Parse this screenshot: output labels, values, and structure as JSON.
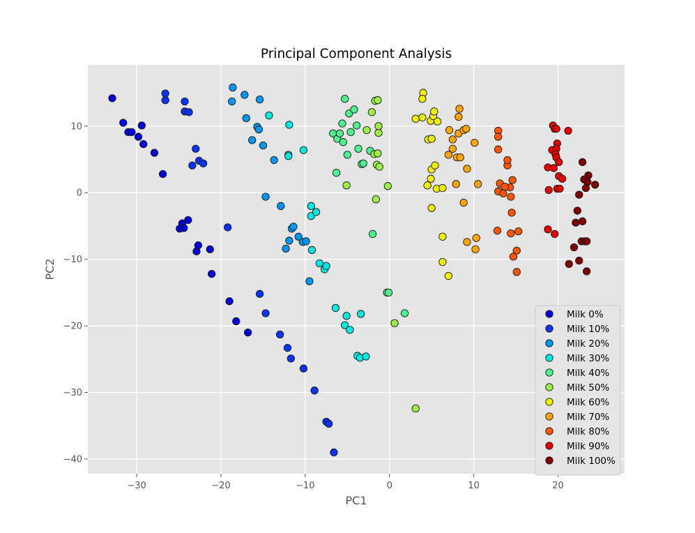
{
  "chart_data": {
    "type": "scatter",
    "title": "Principal Component Analysis",
    "xlabel": "PC1",
    "ylabel": "PC2",
    "xlim": [
      -35.8,
      27.9
    ],
    "ylim": [
      -42.2,
      19.2
    ],
    "xticks": [
      -30,
      -20,
      -10,
      0,
      10,
      20
    ],
    "yticks": [
      -40,
      -30,
      -20,
      -10,
      0,
      10
    ],
    "xtick_labels": [
      "−30",
      "−20",
      "−10",
      "0",
      "10",
      "20"
    ],
    "ytick_labels": [
      "−40",
      "−30",
      "−20",
      "−10",
      "0",
      "10"
    ],
    "grid": true,
    "legend_position": "lower-right",
    "series": [
      {
        "name": "Milk 0%",
        "color": "#0000d8",
        "points": [
          [
            -32.9,
            14.2
          ],
          [
            -31.6,
            10.5
          ],
          [
            -31.0,
            9.1
          ],
          [
            -30.6,
            9.1
          ],
          [
            -29.8,
            8.4
          ],
          [
            -29.4,
            10.1
          ],
          [
            -29.2,
            7.3
          ],
          [
            -27.9,
            6.0
          ],
          [
            -26.9,
            2.8
          ],
          [
            -24.9,
            -5.4
          ],
          [
            -24.6,
            -4.6
          ],
          [
            -24.4,
            -5.3
          ],
          [
            -23.9,
            -4.1
          ],
          [
            -22.9,
            -8.8
          ],
          [
            -22.7,
            -7.9
          ],
          [
            -21.3,
            -8.5
          ],
          [
            -21.1,
            -12.2
          ],
          [
            -19.0,
            -16.3
          ],
          [
            -18.2,
            -19.3
          ],
          [
            -16.8,
            -21.0
          ]
        ]
      },
      {
        "name": "Milk 10%",
        "color": "#0a32f0",
        "points": [
          [
            -26.6,
            14.9
          ],
          [
            -26.6,
            13.9
          ],
          [
            -24.3,
            13.7
          ],
          [
            -24.3,
            12.2
          ],
          [
            -23.8,
            12.1
          ],
          [
            -23.4,
            4.1
          ],
          [
            -23.0,
            6.6
          ],
          [
            -22.6,
            4.8
          ],
          [
            -22.1,
            4.4
          ],
          [
            -19.2,
            -5.2
          ],
          [
            -15.4,
            -15.2
          ],
          [
            -14.7,
            -18.1
          ],
          [
            -13.0,
            -21.3
          ],
          [
            -12.1,
            -23.3
          ],
          [
            -11.7,
            -24.9
          ],
          [
            -10.2,
            -26.4
          ],
          [
            -8.9,
            -29.7
          ],
          [
            -7.5,
            -34.4
          ],
          [
            -7.2,
            -34.7
          ],
          [
            -6.6,
            -39.0
          ]
        ]
      },
      {
        "name": "Milk 20%",
        "color": "#0096f0",
        "points": [
          [
            -18.6,
            15.8
          ],
          [
            -18.7,
            13.7
          ],
          [
            -17.2,
            14.7
          ],
          [
            -17.0,
            11.2
          ],
          [
            -16.3,
            7.9
          ],
          [
            -15.7,
            9.9
          ],
          [
            -15.5,
            9.5
          ],
          [
            -15.4,
            14.0
          ],
          [
            -15.0,
            7.1
          ],
          [
            -14.7,
            -0.6
          ],
          [
            -13.7,
            4.9
          ],
          [
            -12.9,
            -2.0
          ],
          [
            -12.3,
            -8.4
          ],
          [
            -11.9,
            -7.2
          ],
          [
            -11.6,
            -5.4
          ],
          [
            -11.4,
            -5.1
          ],
          [
            -10.8,
            -6.6
          ],
          [
            -10.3,
            -7.4
          ],
          [
            -9.9,
            -7.3
          ],
          [
            -9.5,
            -13.3
          ]
        ]
      },
      {
        "name": "Milk 30%",
        "color": "#00e8e0",
        "points": [
          [
            -14.3,
            11.6
          ],
          [
            -11.9,
            10.2
          ],
          [
            -12.0,
            5.7
          ],
          [
            -12.0,
            5.5
          ],
          [
            -10.2,
            6.4
          ],
          [
            -9.3,
            -2.0
          ],
          [
            -9.3,
            -3.5
          ],
          [
            -8.7,
            -2.9
          ],
          [
            -9.2,
            -8.6
          ],
          [
            -8.3,
            -10.6
          ],
          [
            -7.7,
            -11.5
          ],
          [
            -7.5,
            -11.0
          ],
          [
            -6.4,
            -17.3
          ],
          [
            -5.3,
            -19.9
          ],
          [
            -5.1,
            -18.5
          ],
          [
            -4.7,
            -20.6
          ],
          [
            -3.8,
            -24.5
          ],
          [
            -3.5,
            -24.8
          ],
          [
            -3.4,
            -18.2
          ],
          [
            -2.8,
            -24.6
          ]
        ]
      },
      {
        "name": "Milk 40%",
        "color": "#4ef090",
        "points": [
          [
            -5.3,
            14.1
          ],
          [
            -6.7,
            8.9
          ],
          [
            -6.2,
            8.1
          ],
          [
            -5.9,
            8.9
          ],
          [
            -5.6,
            10.4
          ],
          [
            -5.5,
            7.6
          ],
          [
            -4.8,
            11.9
          ],
          [
            -4.6,
            9.1
          ],
          [
            -4.2,
            12.5
          ],
          [
            -3.9,
            10.1
          ],
          [
            -5.0,
            5.7
          ],
          [
            -6.3,
            3.0
          ],
          [
            -3.7,
            6.6
          ],
          [
            -3.3,
            4.3
          ],
          [
            -3.1,
            4.4
          ],
          [
            -2.3,
            6.3
          ],
          [
            -2.0,
            -6.2
          ],
          [
            -0.3,
            -15.0
          ],
          [
            -0.1,
            -15.0
          ],
          [
            1.8,
            -18.1
          ]
        ]
      },
      {
        "name": "Milk 50%",
        "color": "#9cf046",
        "points": [
          [
            -5.1,
            1.1
          ],
          [
            -2.7,
            9.4
          ],
          [
            -2.1,
            12.1
          ],
          [
            -1.8,
            5.8
          ],
          [
            -1.7,
            13.8
          ],
          [
            -1.4,
            13.9
          ],
          [
            -1.3,
            9.0
          ],
          [
            -1.3,
            10.0
          ],
          [
            -1.5,
            4.2
          ],
          [
            -1.4,
            5.9
          ],
          [
            -1.6,
            -1.0
          ],
          [
            -1.2,
            3.9
          ],
          [
            -0.2,
            1.0
          ],
          [
            0.6,
            -19.6
          ],
          [
            3.1,
            -32.4
          ]
        ]
      },
      {
        "name": "Milk 60%",
        "color": "#f0f000",
        "points": [
          [
            3.1,
            11.1
          ],
          [
            3.9,
            11.3
          ],
          [
            4.0,
            15.0
          ],
          [
            3.9,
            14.1
          ],
          [
            4.6,
            8.0
          ],
          [
            4.5,
            1.1
          ],
          [
            4.9,
            10.8
          ],
          [
            5.0,
            8.1
          ],
          [
            5.0,
            3.5
          ],
          [
            5.2,
            11.5
          ],
          [
            5.3,
            12.2
          ],
          [
            5.4,
            4.1
          ],
          [
            5.7,
            10.7
          ],
          [
            5.6,
            0.6
          ],
          [
            6.3,
            0.7
          ],
          [
            4.9,
            2.1
          ],
          [
            5.0,
            -2.3
          ],
          [
            6.3,
            -6.6
          ],
          [
            6.3,
            -10.4
          ],
          [
            7.0,
            -12.5
          ]
        ]
      },
      {
        "name": "Milk 70%",
        "color": "#ffa500",
        "points": [
          [
            7.1,
            9.4
          ],
          [
            7.0,
            5.7
          ],
          [
            7.5,
            8.0
          ],
          [
            7.5,
            6.6
          ],
          [
            8.0,
            5.3
          ],
          [
            8.2,
            11.4
          ],
          [
            8.3,
            12.6
          ],
          [
            8.2,
            8.9
          ],
          [
            8.4,
            5.3
          ],
          [
            8.8,
            9.4
          ],
          [
            9.1,
            9.6
          ],
          [
            9.2,
            3.6
          ],
          [
            7.9,
            1.3
          ],
          [
            8.8,
            -1.5
          ],
          [
            10.1,
            7.5
          ],
          [
            10.5,
            1.3
          ],
          [
            9.2,
            -7.4
          ],
          [
            10.3,
            -6.8
          ],
          [
            10.2,
            -8.5
          ]
        ]
      },
      {
        "name": "Milk 80%",
        "color": "#ff5500",
        "points": [
          [
            12.9,
            9.3
          ],
          [
            12.9,
            8.4
          ],
          [
            12.9,
            6.5
          ],
          [
            13.1,
            1.4
          ],
          [
            12.9,
            0.2
          ],
          [
            13.5,
            -0.1
          ],
          [
            14.0,
            4.1
          ],
          [
            14.0,
            4.9
          ],
          [
            14.3,
            0.8
          ],
          [
            13.7,
            0.9
          ],
          [
            14.6,
            1.9
          ],
          [
            14.4,
            -0.6
          ],
          [
            14.5,
            -3.0
          ],
          [
            14.4,
            -6.1
          ],
          [
            12.8,
            -5.7
          ],
          [
            15.3,
            -5.8
          ],
          [
            15.1,
            -8.7
          ],
          [
            14.7,
            -9.6
          ],
          [
            15.1,
            -11.9
          ]
        ]
      },
      {
        "name": "Milk 90%",
        "color": "#e50000",
        "points": [
          [
            19.4,
            10.1
          ],
          [
            19.6,
            9.6
          ],
          [
            19.8,
            9.6
          ],
          [
            21.2,
            9.3
          ],
          [
            19.9,
            7.4
          ],
          [
            19.3,
            6.4
          ],
          [
            19.8,
            6.6
          ],
          [
            19.7,
            5.8
          ],
          [
            19.8,
            5.3
          ],
          [
            20.1,
            4.6
          ],
          [
            18.8,
            3.8
          ],
          [
            19.5,
            3.7
          ],
          [
            20.1,
            2.5
          ],
          [
            20.5,
            2.1
          ],
          [
            18.9,
            0.4
          ],
          [
            19.9,
            0.6
          ],
          [
            20.2,
            0.6
          ],
          [
            18.8,
            -5.5
          ],
          [
            19.6,
            -6.2
          ]
        ]
      },
      {
        "name": "Milk 100%",
        "color": "#7f0000",
        "points": [
          [
            22.9,
            4.6
          ],
          [
            23.6,
            2.6
          ],
          [
            23.1,
            2.0
          ],
          [
            23.5,
            1.6
          ],
          [
            24.4,
            1.2
          ],
          [
            23.3,
            0.7
          ],
          [
            22.5,
            -0.3
          ],
          [
            22.3,
            -2.7
          ],
          [
            22.9,
            -4.3
          ],
          [
            22.1,
            -4.5
          ],
          [
            22.8,
            -7.3
          ],
          [
            23.2,
            -7.3
          ],
          [
            23.4,
            -7.3
          ],
          [
            21.9,
            -8.2
          ],
          [
            22.5,
            -10.2
          ],
          [
            21.3,
            -10.7
          ],
          [
            23.4,
            -11.8
          ]
        ]
      }
    ]
  }
}
